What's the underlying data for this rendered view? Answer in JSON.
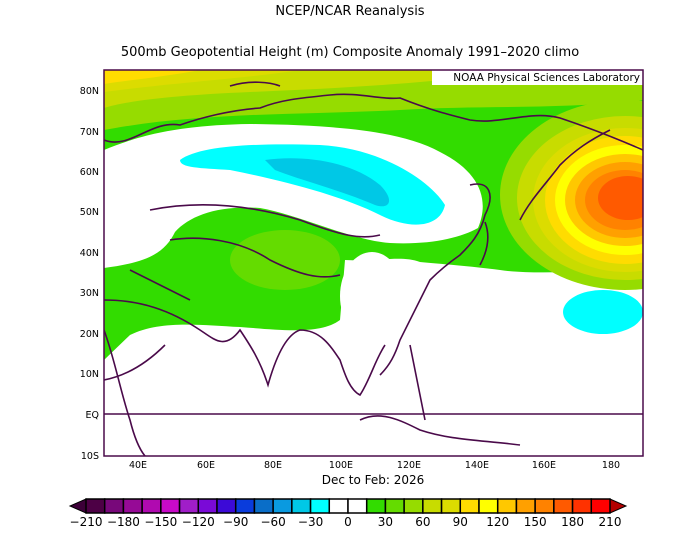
{
  "title": "NCEP/NCAR Reanalysis",
  "subtitle": "500mb Geopotential Height (m) Composite Anomaly 1991–2020 climo",
  "credit": "NOAA Physical Sciences Laboratory",
  "period_label": "Dec to Feb: 2026",
  "lat_labels": [
    "80N",
    "70N",
    "60N",
    "50N",
    "40N",
    "30N",
    "20N",
    "10N",
    "EQ",
    "10S"
  ],
  "lon_labels": [
    "40E",
    "60E",
    "80E",
    "100E",
    "120E",
    "140E",
    "160E",
    "180"
  ],
  "colorbar": {
    "labels": [
      "−210",
      "−180",
      "−150",
      "−120",
      "−90",
      "−60",
      "−30",
      "0",
      "30",
      "60",
      "90",
      "120",
      "150",
      "180",
      "210"
    ],
    "colors": [
      "#4d0045",
      "#78087a",
      "#960a96",
      "#b00ab0",
      "#c80ac8",
      "#a01ec8",
      "#7a0ad7",
      "#3c0ad7",
      "#0a3cdc",
      "#0a6ec8",
      "#0a9ae0",
      "#00c8e6",
      "#00ffff",
      "#ffffff",
      "#ffffff",
      "#32dc00",
      "#64dc00",
      "#96dc00",
      "#c8dc00",
      "#dcdc00",
      "#ffdc00",
      "#ffff00",
      "#ffc800",
      "#ffa000",
      "#ff8200",
      "#ff5a00",
      "#ff3200",
      "#ff0000"
    ],
    "low_end_color": "#3c0038",
    "high_end_color": "#b40000"
  }
}
